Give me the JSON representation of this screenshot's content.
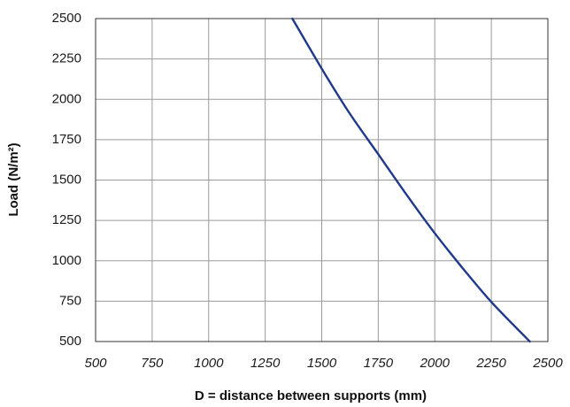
{
  "chart_data": {
    "type": "line",
    "title": "",
    "xlabel": "D = distance between supports (mm)",
    "ylabel": "Load (N/m²)",
    "xlim": [
      500,
      2500
    ],
    "ylim": [
      500,
      2500
    ],
    "x_ticks": [
      "500",
      "750",
      "1000",
      "1250",
      "1500",
      "1750",
      "2000",
      "2250",
      "2500"
    ],
    "y_ticks": [
      "2500",
      "2250",
      "2000",
      "1750",
      "1500",
      "1250",
      "1000",
      "750",
      "500"
    ],
    "grid": true,
    "legend": "none",
    "series": [
      {
        "color": "#1f3a8a",
        "x": [
          1370,
          1500,
          1620,
          1750,
          1880,
          2000,
          2120,
          2250,
          2420
        ],
        "y": [
          2500,
          2190,
          1920,
          1660,
          1400,
          1170,
          960,
          745,
          500
        ]
      }
    ]
  }
}
